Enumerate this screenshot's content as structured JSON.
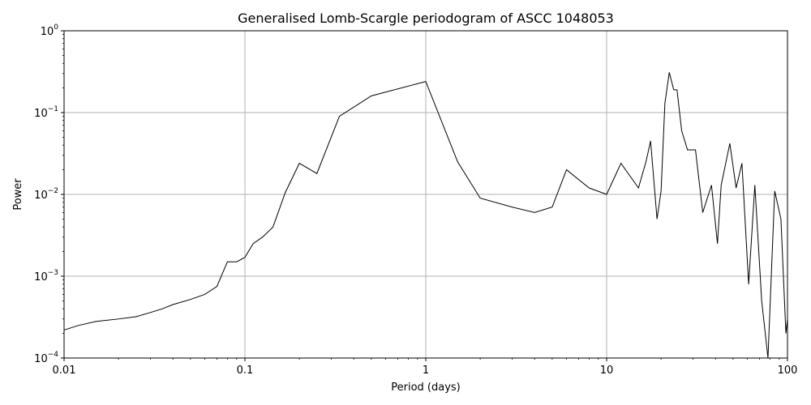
{
  "chart_data": {
    "type": "line",
    "title": "Generalised Lomb-Scargle periodogram of ASCC 1048053",
    "xlabel": "Period (days)",
    "ylabel": "Power",
    "xscale": "log",
    "yscale": "log",
    "xlim": [
      0.01,
      100
    ],
    "ylim": [
      0.0001,
      1
    ],
    "grid": true,
    "x_ticks": [
      {
        "value": 0.01,
        "label": "0.01"
      },
      {
        "value": 0.1,
        "label": "0.1"
      },
      {
        "value": 1,
        "label": "1"
      },
      {
        "value": 10,
        "label": "10"
      },
      {
        "value": 100,
        "label": "100"
      }
    ],
    "y_ticks": [
      {
        "value": 0.0001,
        "base": "10",
        "exp": "−4"
      },
      {
        "value": 0.001,
        "base": "10",
        "exp": "−3"
      },
      {
        "value": 0.01,
        "base": "10",
        "exp": "−2"
      },
      {
        "value": 0.1,
        "base": "10",
        "exp": "−1"
      },
      {
        "value": 1,
        "base": "10",
        "exp": "0"
      }
    ],
    "line_color": "#000000",
    "grid_color": "#b0b0b0",
    "series": [
      {
        "name": "",
        "x": [
          0.01,
          0.012,
          0.015,
          0.02,
          0.025,
          0.03,
          0.035,
          0.04,
          0.05,
          0.06,
          0.07,
          0.08,
          0.09,
          0.1,
          0.111,
          0.125,
          0.143,
          0.167,
          0.2,
          0.25,
          0.333,
          0.5,
          1.0,
          1.5,
          2.0,
          3.0,
          4.0,
          5.0,
          6.0,
          8.0,
          10.0,
          12.0,
          15.0,
          16.5,
          17.5,
          19.0,
          20.0,
          21.0,
          22.2,
          23.5,
          24.5,
          26.0,
          28.0,
          31.0,
          34.0,
          38.0,
          41.0,
          43.0,
          48.0,
          52.0,
          56.0,
          61.0,
          66.0,
          72.0,
          78.0,
          85.0,
          92.0,
          98.0,
          100.0
        ],
        "y": [
          0.00022,
          0.00025,
          0.00028,
          0.0003,
          0.00032,
          0.00036,
          0.0004,
          0.00045,
          0.00052,
          0.0006,
          0.00075,
          0.0015,
          0.0015,
          0.0017,
          0.0025,
          0.003,
          0.004,
          0.0105,
          0.024,
          0.018,
          0.09,
          0.16,
          0.24,
          0.025,
          0.009,
          0.007,
          0.006,
          0.007,
          0.02,
          0.012,
          0.01,
          0.024,
          0.012,
          0.025,
          0.045,
          0.005,
          0.011,
          0.13,
          0.31,
          0.19,
          0.19,
          0.06,
          0.035,
          0.035,
          0.006,
          0.013,
          0.0025,
          0.013,
          0.042,
          0.012,
          0.024,
          0.0008,
          0.013,
          0.0005,
          0.0001,
          0.011,
          0.005,
          0.0002,
          0.0003
        ]
      }
    ]
  }
}
